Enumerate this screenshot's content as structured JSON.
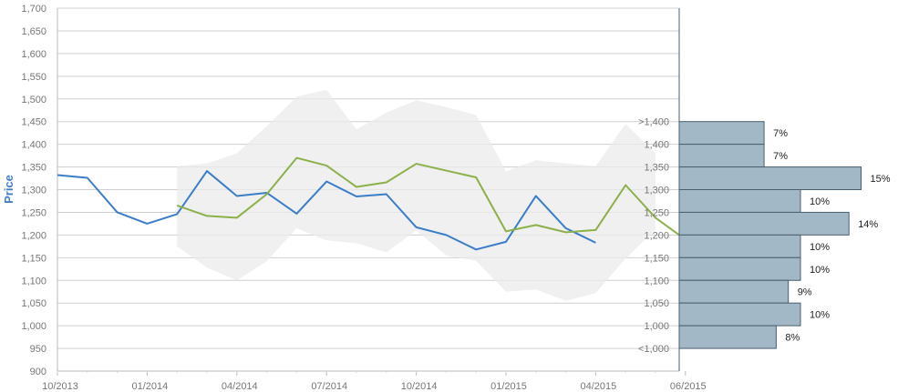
{
  "chart_data": {
    "type": "line",
    "ylabel": "Price",
    "ylim": [
      900,
      1700
    ],
    "yticks": [
      "900",
      "950",
      "1,000",
      "1,050",
      "1,100",
      "1,150",
      "1,200",
      "1,250",
      "1,300",
      "1,350",
      "1,400",
      "1,450",
      "1,500",
      "1,550",
      "1,600",
      "1,650",
      "1,700"
    ],
    "xticks": [
      "10/2013",
      "01/2014",
      "04/2014",
      "07/2014",
      "10/2014",
      "01/2015",
      "04/2015",
      "06/2015"
    ],
    "grid": true,
    "colors": {
      "series_1": "#3b7dc8",
      "series_2": "#8cb04a",
      "band": "#ebebeb",
      "hist_bar": "#a2b8c6",
      "hist_stroke": "#4a5f6e"
    },
    "series": [
      {
        "values": [
          {
            "date": "2013-10",
            "value": 1332
          },
          {
            "date": "2013-11",
            "value": 1326
          },
          {
            "date": "2013-12",
            "value": 1250
          },
          {
            "date": "2014-01",
            "value": 1225
          },
          {
            "date": "2014-02",
            "value": 1246
          },
          {
            "date": "2014-03",
            "value": 1341
          },
          {
            "date": "2014-04",
            "value": 1286
          },
          {
            "date": "2014-05",
            "value": 1293
          },
          {
            "date": "2014-06",
            "value": 1247
          },
          {
            "date": "2014-07",
            "value": 1318
          },
          {
            "date": "2014-08",
            "value": 1285
          },
          {
            "date": "2014-09",
            "value": 1290
          },
          {
            "date": "2014-10",
            "value": 1217
          },
          {
            "date": "2014-11",
            "value": 1200
          },
          {
            "date": "2014-12",
            "value": 1168
          },
          {
            "date": "2015-01",
            "value": 1185
          },
          {
            "date": "2015-02",
            "value": 1286
          },
          {
            "date": "2015-03",
            "value": 1215
          },
          {
            "date": "2015-04",
            "value": 1183
          }
        ]
      },
      {
        "values": [
          {
            "date": "2014-02",
            "value": 1265
          },
          {
            "date": "2014-03",
            "value": 1242
          },
          {
            "date": "2014-04",
            "value": 1238
          },
          {
            "date": "2014-05",
            "value": 1290
          },
          {
            "date": "2014-06",
            "value": 1370
          },
          {
            "date": "2014-07",
            "value": 1353
          },
          {
            "date": "2014-08",
            "value": 1306
          },
          {
            "date": "2014-09",
            "value": 1316
          },
          {
            "date": "2014-10",
            "value": 1357
          },
          {
            "date": "2014-11",
            "value": 1342
          },
          {
            "date": "2014-12",
            "value": 1327
          },
          {
            "date": "2015-01",
            "value": 1208
          },
          {
            "date": "2015-02",
            "value": 1222
          },
          {
            "date": "2015-03",
            "value": 1206
          },
          {
            "date": "2015-04",
            "value": 1211
          },
          {
            "date": "2015-05",
            "value": 1310
          },
          {
            "date": "2015-06",
            "value": 1238
          },
          {
            "date": "2015-07",
            "value": 1200
          }
        ]
      }
    ],
    "band": [
      {
        "date": "2014-02",
        "high": 1352,
        "low": 1175
      },
      {
        "date": "2014-03",
        "high": 1358,
        "low": 1128
      },
      {
        "date": "2014-04",
        "high": 1380,
        "low": 1100
      },
      {
        "date": "2014-05",
        "high": 1440,
        "low": 1142
      },
      {
        "date": "2014-06",
        "high": 1505,
        "low": 1215
      },
      {
        "date": "2014-07",
        "high": 1520,
        "low": 1188
      },
      {
        "date": "2014-08",
        "high": 1433,
        "low": 1182
      },
      {
        "date": "2014-09",
        "high": 1470,
        "low": 1162
      },
      {
        "date": "2014-10",
        "high": 1497,
        "low": 1210
      },
      {
        "date": "2014-11",
        "high": 1482,
        "low": 1155
      },
      {
        "date": "2014-12",
        "high": 1465,
        "low": 1143
      },
      {
        "date": "2015-01",
        "high": 1340,
        "low": 1075
      },
      {
        "date": "2015-02",
        "high": 1365,
        "low": 1080
      },
      {
        "date": "2015-03",
        "high": 1358,
        "low": 1055
      },
      {
        "date": "2015-04",
        "high": 1352,
        "low": 1072
      },
      {
        "date": "2015-05",
        "high": 1445,
        "low": 1148
      },
      {
        "date": "2015-06",
        "high": 1380,
        "low": 1212
      }
    ],
    "distribution": [
      {
        "label": ">1,400",
        "low": 1400,
        "high": 1450,
        "pct": 7,
        "pct_label": "7%"
      },
      {
        "label": "1,400",
        "low": 1350,
        "high": 1400,
        "pct": 7,
        "pct_label": "7%"
      },
      {
        "label": "1,350",
        "low": 1300,
        "high": 1350,
        "pct": 15,
        "pct_label": "15%"
      },
      {
        "label": "1,300",
        "low": 1250,
        "high": 1300,
        "pct": 10,
        "pct_label": "10%"
      },
      {
        "label": "1,250",
        "low": 1200,
        "high": 1250,
        "pct": 14,
        "pct_label": "14%"
      },
      {
        "label": "1,200",
        "low": 1150,
        "high": 1200,
        "pct": 10,
        "pct_label": "10%"
      },
      {
        "label": "1,150",
        "low": 1100,
        "high": 1150,
        "pct": 10,
        "pct_label": "10%"
      },
      {
        "label": "1,100",
        "low": 1050,
        "high": 1100,
        "pct": 9,
        "pct_label": "9%"
      },
      {
        "label": "1,050",
        "low": 1000,
        "high": 1050,
        "pct": 10,
        "pct_label": "10%"
      },
      {
        "label": "1,000",
        "low": 950,
        "high": 1000,
        "pct": 8,
        "pct_label": "8%"
      },
      {
        "label": "<1,000",
        "low": 950,
        "high": 950,
        "pct": null,
        "pct_label": ""
      }
    ]
  }
}
